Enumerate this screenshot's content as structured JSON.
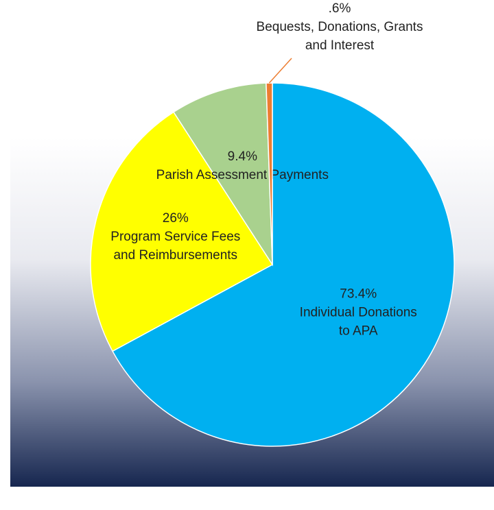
{
  "chart_data": {
    "type": "pie",
    "categories": [
      [
        "Individual Donations",
        "to APA"
      ],
      [
        "Program Service Fees",
        "and Reimbursements"
      ],
      [
        "Parish Assessment Payments"
      ],
      [
        "Bequests, Donations, Grants",
        "and Interest"
      ]
    ],
    "values": [
      73.4,
      26,
      9.4,
      0.6
    ],
    "value_labels": [
      "73.4%",
      "26%",
      "9.4%",
      ".6%"
    ],
    "colors": [
      "#00b0f0",
      "#ffff00",
      "#a9d18e",
      "#ed7d31"
    ]
  }
}
